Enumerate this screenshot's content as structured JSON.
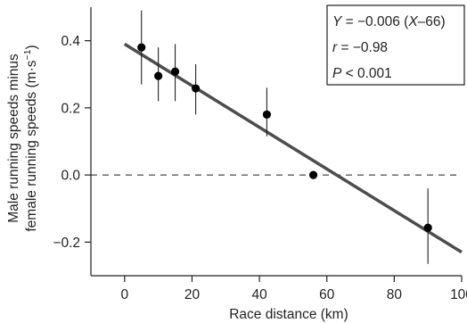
{
  "chart_data": {
    "type": "scatter",
    "title": "",
    "xlabel": "Race distance (km)",
    "ylabel_line1": "Male running speeds minus",
    "ylabel_line2": "female running speeds (m·s",
    "ylabel_sup": "−1",
    "ylabel_close": ")",
    "xlim": [
      -10,
      100
    ],
    "ylim": [
      -0.3,
      0.5
    ],
    "x_ticks": [
      {
        "value": 0,
        "label": "0"
      },
      {
        "value": 20,
        "label": "20"
      },
      {
        "value": 40,
        "label": "40"
      },
      {
        "value": 60,
        "label": "60"
      },
      {
        "value": 80,
        "label": "80"
      },
      {
        "value": 100,
        "label": "100"
      }
    ],
    "y_ticks": [
      {
        "value": -0.2,
        "label": "−0.2"
      },
      {
        "value": 0.0,
        "label": "0.0"
      },
      {
        "value": 0.2,
        "label": "0.2"
      },
      {
        "value": 0.4,
        "label": "0.4"
      }
    ],
    "points": [
      {
        "x": 5,
        "y": 0.38,
        "err_low": 0.27,
        "err_high": 0.49
      },
      {
        "x": 10,
        "y": 0.295,
        "err_low": 0.22,
        "err_high": 0.38
      },
      {
        "x": 15,
        "y": 0.308,
        "err_low": 0.22,
        "err_high": 0.39
      },
      {
        "x": 21.1,
        "y": 0.258,
        "err_low": 0.18,
        "err_high": 0.33
      },
      {
        "x": 42.2,
        "y": 0.18,
        "err_low": 0.115,
        "err_high": 0.26
      },
      {
        "x": 56,
        "y": 0.0,
        "err_low": 0.0,
        "err_high": 0.0
      },
      {
        "x": 90,
        "y": -0.157,
        "err_low": -0.265,
        "err_high": -0.04
      }
    ],
    "regression_line": {
      "x": [
        0,
        100
      ],
      "y": [
        0.39,
        -0.23
      ]
    },
    "reference_line": {
      "y": 0.0,
      "style": "dashed"
    },
    "annotations": [
      {
        "runs": [
          {
            "text": "Y",
            "italic": true
          },
          {
            "text": " = −0.006 (",
            "italic": false
          },
          {
            "text": "X",
            "italic": true
          },
          {
            "text": "–66)",
            "italic": false
          }
        ]
      },
      {
        "runs": [
          {
            "text": "r",
            "italic": true
          },
          {
            "text": " = −0.98",
            "italic": false
          }
        ]
      },
      {
        "runs": [
          {
            "text": "P",
            "italic": true
          },
          {
            "text": " < 0.001",
            "italic": false
          }
        ]
      }
    ],
    "annotation_placement": "top-right",
    "grid": false,
    "colors": {
      "line": "#4d4d4f",
      "points": "#000000",
      "text": "#231f20"
    }
  }
}
